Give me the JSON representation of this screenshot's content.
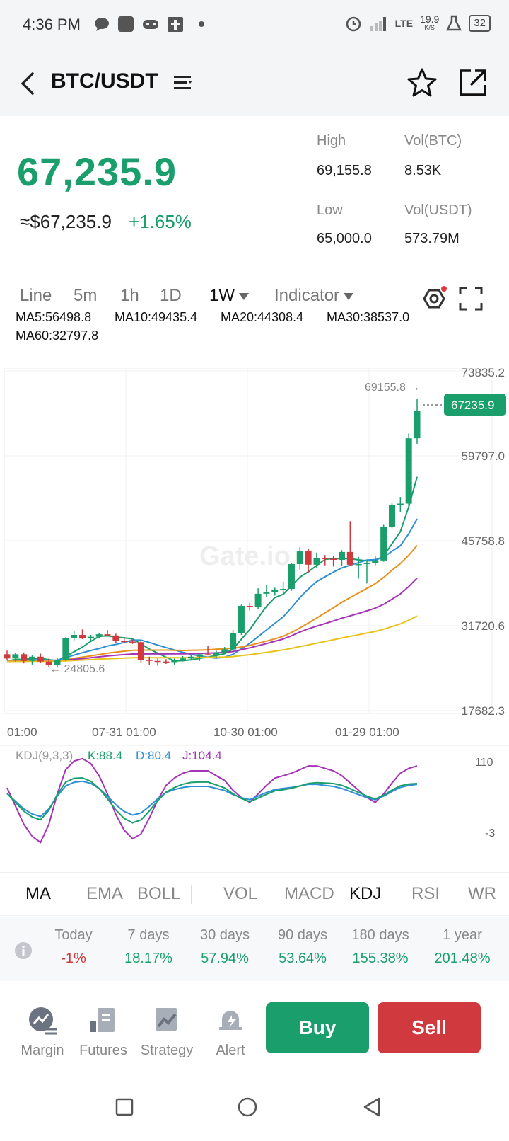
{
  "status_bar": {
    "time": "4:36 PM",
    "network": "LTE",
    "speed_value": "19.9",
    "speed_unit": "K/S",
    "battery": "32"
  },
  "header": {
    "pair": "BTC/USDT"
  },
  "price": {
    "last": "67,235.9",
    "usd": "≈$67,235.9",
    "change": "+1.65%"
  },
  "stats": {
    "high_label": "High",
    "high_value": "69,155.8",
    "vol_btc_label": "Vol(BTC)",
    "vol_btc_value": "8.53K",
    "low_label": "Low",
    "low_value": "65,000.0",
    "vol_usdt_label": "Vol(USDT)",
    "vol_usdt_value": "573.79M"
  },
  "timeframes": {
    "line": "Line",
    "m5": "5m",
    "h1": "1h",
    "d1": "1D",
    "w1": "1W",
    "indicator": "Indicator"
  },
  "ma_legend": {
    "ma5": "MA5:56498.8",
    "ma10": "MA10:49435.4",
    "ma20": "MA20:44308.4",
    "ma30": "MA30:38537.0",
    "ma60": "MA60:32797.8"
  },
  "colors": {
    "up": "#1a9e6b",
    "down": "#d0393e",
    "ma5": "#1a9e6b",
    "ma10": "#2f8fd4",
    "ma20": "#e8901d",
    "ma30": "#a533b7",
    "ma60": "#e8c21b"
  },
  "chart": {
    "watermark": "Gate.io",
    "price_axis": [
      "73835.2",
      "59797.0",
      "45758.8",
      "31720.6",
      "17682.3"
    ],
    "time_axis": [
      "01:00",
      "07-31 01:00",
      "10-30 01:00",
      "01-29 01:00"
    ],
    "high_marker": "69155.8 →",
    "low_marker": "← 24805.6",
    "current_tag": "67235.9",
    "kdj_label": "KDJ(9,3,3)",
    "kdj_k": "K:88.4",
    "kdj_d": "D:80.4",
    "kdj_j": "J:104.4",
    "kdj_axis_top": "110",
    "kdj_axis_bottom": "-3"
  },
  "chart_data": {
    "type": "candlestick",
    "y_range": [
      17682.3,
      73835.2
    ],
    "candles_ohlc": [
      [
        27000,
        27600,
        26000,
        26300
      ],
      [
        26300,
        27200,
        25800,
        27000
      ],
      [
        27000,
        27300,
        25500,
        25900
      ],
      [
        25900,
        26800,
        25300,
        26600
      ],
      [
        26600,
        27100,
        25600,
        25800
      ],
      [
        25800,
        26300,
        24900,
        25200
      ],
      [
        25200,
        26400,
        24800,
        26100
      ],
      [
        26100,
        29800,
        25900,
        29700
      ],
      [
        29700,
        30800,
        29300,
        30200
      ],
      [
        30200,
        31100,
        29500,
        29700
      ],
      [
        29700,
        30200,
        29200,
        29900
      ],
      [
        29900,
        30500,
        29600,
        30300
      ],
      [
        30300,
        31000,
        29900,
        30100
      ],
      [
        30100,
        30400,
        28800,
        29200
      ],
      [
        29200,
        29800,
        28900,
        29100
      ],
      [
        29100,
        29400,
        28700,
        29000
      ],
      [
        29000,
        29300,
        25600,
        26100
      ],
      [
        26100,
        26600,
        25200,
        25900
      ],
      [
        25900,
        26300,
        25100,
        25800
      ],
      [
        25800,
        26200,
        25400,
        25700
      ],
      [
        25700,
        26300,
        25300,
        26000
      ],
      [
        26000,
        26700,
        25800,
        26300
      ],
      [
        26300,
        26900,
        26000,
        26600
      ],
      [
        26600,
        27200,
        25900,
        27000
      ],
      [
        27000,
        28400,
        26800,
        26800
      ],
      [
        26800,
        27600,
        26500,
        27300
      ],
      [
        27300,
        28200,
        27000,
        27800
      ],
      [
        27800,
        31000,
        27500,
        30500
      ],
      [
        30500,
        35200,
        30200,
        35000
      ],
      [
        35000,
        35500,
        34200,
        34800
      ],
      [
        34800,
        37900,
        34400,
        37000
      ],
      [
        37000,
        38400,
        36500,
        37300
      ],
      [
        37300,
        38000,
        36700,
        37700
      ],
      [
        37700,
        39000,
        37200,
        37800
      ],
      [
        37800,
        42000,
        37500,
        41900
      ],
      [
        41900,
        44700,
        41000,
        44000
      ],
      [
        44000,
        44500,
        40500,
        41800
      ],
      [
        41800,
        43800,
        41300,
        42900
      ],
      [
        42900,
        43400,
        41700,
        42800
      ],
      [
        42800,
        43200,
        41500,
        42600
      ],
      [
        42600,
        44200,
        41600,
        43900
      ],
      [
        43900,
        49000,
        41600,
        41800
      ],
      [
        41800,
        43100,
        39500,
        41900
      ],
      [
        41900,
        42600,
        38700,
        42100
      ],
      [
        42100,
        43200,
        41700,
        42500
      ],
      [
        42500,
        48400,
        42300,
        48100
      ],
      [
        48100,
        52000,
        47800,
        51700
      ],
      [
        51700,
        53000,
        50500,
        51900
      ],
      [
        51900,
        63500,
        51400,
        62700
      ],
      [
        62700,
        69155.8,
        61800,
        67235.9
      ]
    ],
    "ma_series": [
      "MA5",
      "MA10",
      "MA20",
      "MA30",
      "MA60"
    ],
    "kdj_range": [
      -3,
      110
    ]
  },
  "indicator_tabs": [
    "MA",
    "EMA",
    "BOLL",
    "VOL",
    "MACD",
    "KDJ",
    "RSI",
    "WR"
  ],
  "performance": [
    {
      "label": "Today",
      "value": "-1%",
      "dir": "down"
    },
    {
      "label": "7 days",
      "value": "18.17%",
      "dir": "up"
    },
    {
      "label": "30 days",
      "value": "57.94%",
      "dir": "up"
    },
    {
      "label": "90 days",
      "value": "53.64%",
      "dir": "up"
    },
    {
      "label": "180 days",
      "value": "155.38%",
      "dir": "up"
    },
    {
      "label": "1 year",
      "value": "201.48%",
      "dir": "up"
    }
  ],
  "actions": {
    "margin": "Margin",
    "futures": "Futures",
    "strategy": "Strategy",
    "alert": "Alert",
    "buy": "Buy",
    "sell": "Sell"
  }
}
